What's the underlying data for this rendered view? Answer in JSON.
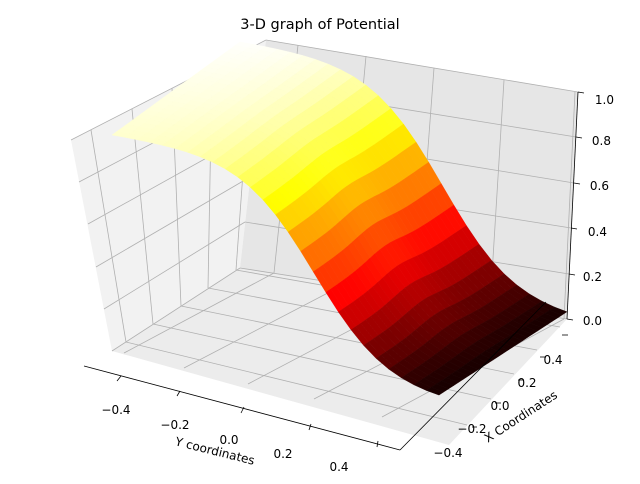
{
  "chart_data": {
    "type": "surface3d",
    "title": "3-D graph of Potential",
    "xlabel": "X Coordinates",
    "ylabel": "Y coordinates",
    "zlabel": "",
    "x_ticks": [
      "−0.4",
      "−0.2",
      "0.0",
      "0.2",
      "0.4"
    ],
    "y_ticks": [
      "−0.4",
      "−0.2",
      "0.0",
      "0.2",
      "0.4"
    ],
    "z_ticks": [
      "0.0",
      "0.2",
      "0.4",
      "0.6",
      "0.8",
      "1.0"
    ],
    "xlim": [
      -0.5,
      0.5
    ],
    "ylim": [
      -0.5,
      0.5
    ],
    "zlim": [
      0,
      1
    ],
    "colormap": "hot",
    "grid": true
  }
}
